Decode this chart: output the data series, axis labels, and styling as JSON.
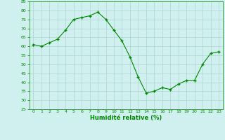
{
  "x": [
    0,
    1,
    2,
    3,
    4,
    5,
    6,
    7,
    8,
    9,
    10,
    11,
    12,
    13,
    14,
    15,
    16,
    17,
    18,
    19,
    20,
    21,
    22,
    23
  ],
  "y": [
    61,
    60,
    62,
    64,
    69,
    75,
    76,
    77,
    79,
    75,
    69,
    63,
    54,
    43,
    34,
    35,
    37,
    36,
    39,
    41,
    41,
    50,
    56,
    57
  ],
  "line_color": "#008800",
  "marker_color": "#008800",
  "bg_color": "#d0f0f0",
  "grid_color": "#aacccc",
  "xlabel": "Humidité relative (%)",
  "xlabel_color": "#008800",
  "tick_color": "#008800",
  "spine_color": "#008800",
  "ylim": [
    25,
    85
  ],
  "xlim": [
    -0.5,
    23.5
  ],
  "yticks": [
    25,
    30,
    35,
    40,
    45,
    50,
    55,
    60,
    65,
    70,
    75,
    80,
    85
  ],
  "xticks": [
    0,
    1,
    2,
    3,
    4,
    5,
    6,
    7,
    8,
    9,
    10,
    11,
    12,
    13,
    14,
    15,
    16,
    17,
    18,
    19,
    20,
    21,
    22,
    23
  ]
}
